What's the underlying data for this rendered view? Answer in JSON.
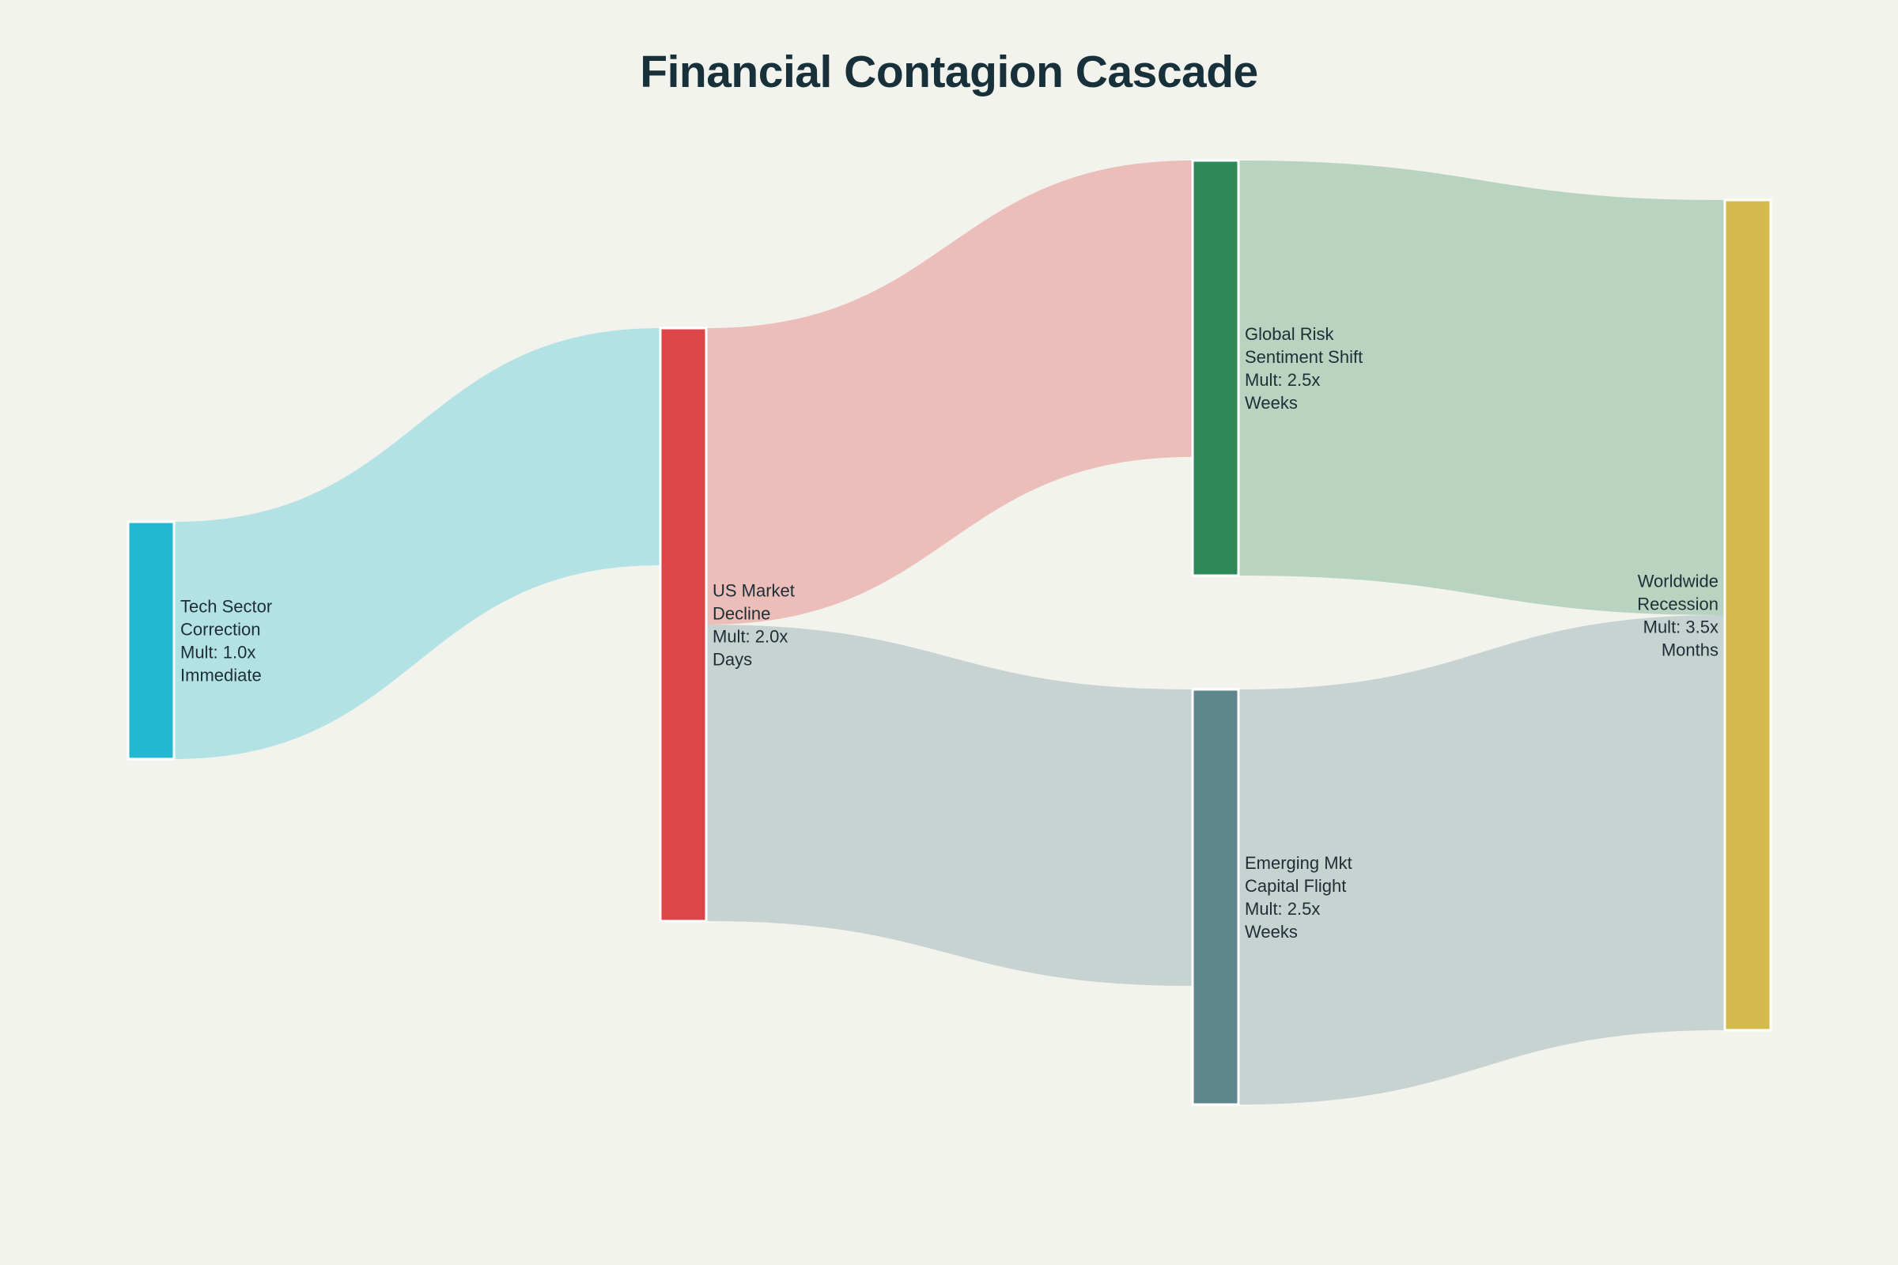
{
  "chart_data": {
    "type": "sankey",
    "title": "Financial Contagion Cascade",
    "nodes": [
      {
        "id": "tech",
        "lines": [
          "Tech Sector",
          "Correction",
          "Mult: 1.0x",
          "Immediate"
        ],
        "color": "#22b8cf"
      },
      {
        "id": "us",
        "lines": [
          "US Market",
          "Decline",
          "Mult: 2.0x",
          "Days"
        ],
        "color": "#dc4649"
      },
      {
        "id": "global",
        "lines": [
          "Global Risk",
          "Sentiment Shift",
          "Mult: 2.5x",
          "Weeks"
        ],
        "color": "#2e8959"
      },
      {
        "id": "emerging",
        "lines": [
          "Emerging Mkt",
          "Capital Flight",
          "Mult: 2.5x",
          "Weeks"
        ],
        "color": "#5f868d"
      },
      {
        "id": "world",
        "lines": [
          "Worldwide",
          "Recession",
          "Mult: 3.5x",
          "Months"
        ],
        "color": "#d4ba4d"
      }
    ],
    "links": [
      {
        "source": "tech",
        "target": "us",
        "value": 1.0,
        "color": "#b3e2e4"
      },
      {
        "source": "us",
        "target": "global",
        "value": 1.25,
        "color": "#ecbeb9"
      },
      {
        "source": "us",
        "target": "emerging",
        "value": 1.25,
        "color": "#c6d3d1"
      },
      {
        "source": "global",
        "target": "world",
        "value": 1.75,
        "color": "#b8d4c1"
      },
      {
        "source": "emerging",
        "target": "world",
        "value": 1.75,
        "color": "#c6d3d1"
      }
    ]
  }
}
